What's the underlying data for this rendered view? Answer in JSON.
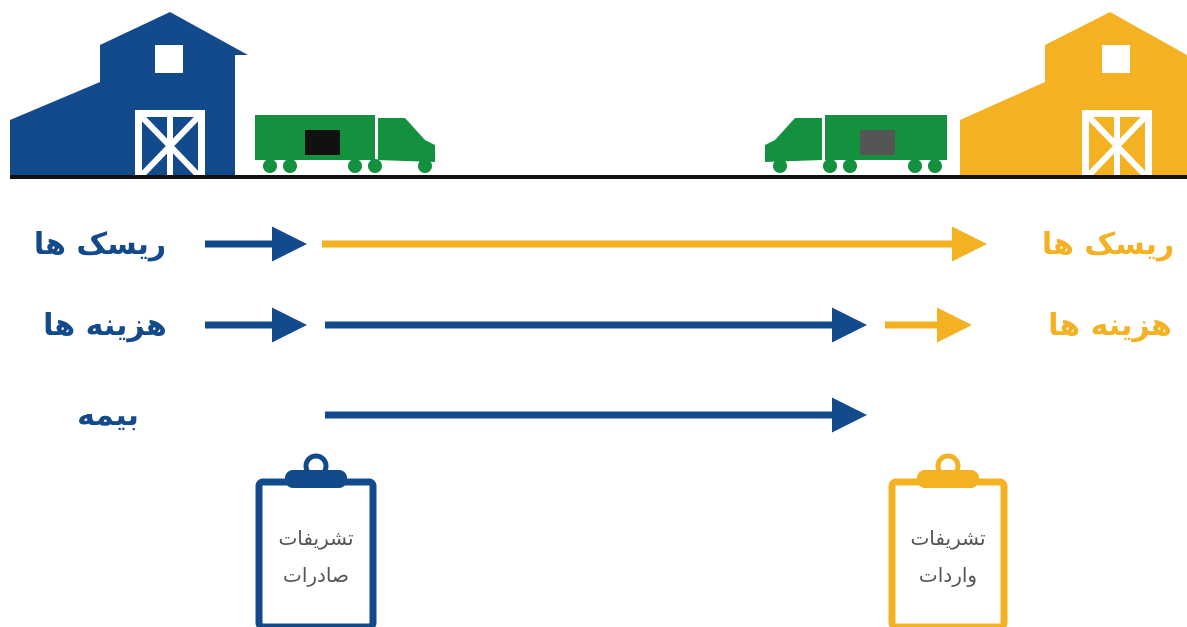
{
  "rows_left": [
    "ریسک ها",
    "هزینه ها",
    "بیمه"
  ],
  "rows_right": [
    "ریسک ها",
    "هزینه ها"
  ],
  "clipboards": [
    {
      "lines": [
        "تشریفات",
        "صادرات"
      ]
    },
    {
      "lines": [
        "تشریفات",
        "واردات"
      ]
    }
  ]
}
